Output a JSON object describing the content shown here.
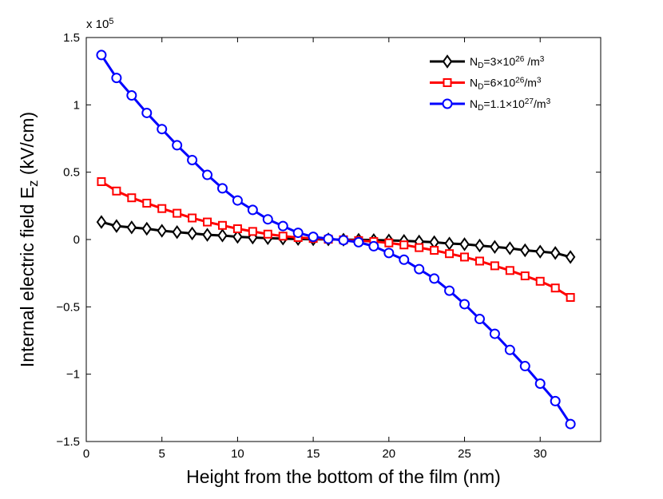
{
  "chart_data": {
    "type": "line",
    "xlabel": "Height from the bottom of the film (nm)",
    "ylabel": "Internal electric field E_{z}  (kV/cm)",
    "y_multiplier": "x 10^{5}",
    "x": [
      1,
      2,
      3,
      4,
      5,
      6,
      7,
      8,
      9,
      10,
      11,
      12,
      13,
      14,
      15,
      16,
      17,
      18,
      19,
      20,
      21,
      22,
      23,
      24,
      25,
      26,
      27,
      28,
      29,
      30,
      31,
      32
    ],
    "xlim": [
      0,
      34
    ],
    "xticks": [
      0,
      5,
      10,
      15,
      20,
      25,
      30
    ],
    "ylim": [
      -1.5,
      1.5
    ],
    "yticks": [
      {
        "value": -1.5,
        "label": "−1.5"
      },
      {
        "value": -1,
        "label": "−1"
      },
      {
        "value": -0.5,
        "label": "−0.5"
      },
      0,
      0.5,
      1,
      1.5
    ],
    "legend": "upper right",
    "series": [
      {
        "name": "N_{D}=3×10^{26} /m^{3}",
        "color": "#000000",
        "marker": "diamond",
        "values": [
          0.13,
          0.1,
          0.09,
          0.08,
          0.065,
          0.055,
          0.045,
          0.035,
          0.03,
          0.02,
          0.015,
          0.01,
          0.007,
          0.004,
          0.002,
          0.001,
          -0.001,
          -0.002,
          -0.004,
          -0.007,
          -0.01,
          -0.015,
          -0.02,
          -0.03,
          -0.035,
          -0.045,
          -0.055,
          -0.065,
          -0.08,
          -0.09,
          -0.1,
          -0.13
        ]
      },
      {
        "name": "N_{D}=6×10^{26}/m^{3}",
        "color": "#ff0000",
        "marker": "square",
        "values": [
          0.43,
          0.36,
          0.31,
          0.27,
          0.23,
          0.195,
          0.16,
          0.13,
          0.105,
          0.08,
          0.06,
          0.04,
          0.025,
          0.015,
          0.008,
          0.002,
          -0.002,
          -0.008,
          -0.015,
          -0.025,
          -0.04,
          -0.06,
          -0.08,
          -0.105,
          -0.13,
          -0.16,
          -0.195,
          -0.23,
          -0.27,
          -0.31,
          -0.36,
          -0.43
        ]
      },
      {
        "name": "N_{D}=1.1×10^{27}/m^{3}",
        "color": "#0000ff",
        "marker": "circle",
        "values": [
          1.37,
          1.2,
          1.07,
          0.94,
          0.82,
          0.7,
          0.59,
          0.48,
          0.38,
          0.29,
          0.22,
          0.15,
          0.1,
          0.05,
          0.02,
          0.005,
          -0.005,
          -0.02,
          -0.05,
          -0.1,
          -0.15,
          -0.22,
          -0.29,
          -0.38,
          -0.48,
          -0.59,
          -0.7,
          -0.82,
          -0.94,
          -1.07,
          -1.2,
          -1.37
        ]
      }
    ]
  }
}
